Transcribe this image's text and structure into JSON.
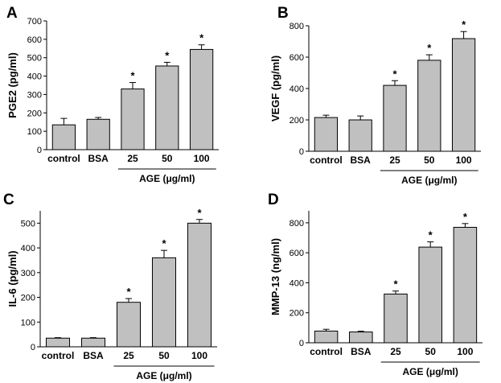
{
  "colors": {
    "bar_fill": "#c0c0c0",
    "bar_stroke": "#000000"
  },
  "chart_data": [
    {
      "panel": "A",
      "type": "bar",
      "ylabel": "PGE2 (pg/ml)",
      "categories": [
        "control",
        "BSA",
        "25",
        "50",
        "100"
      ],
      "values": [
        135,
        165,
        330,
        455,
        545
      ],
      "errors": [
        35,
        10,
        35,
        20,
        25
      ],
      "significant": [
        "",
        "",
        "*",
        "*",
        "*"
      ],
      "ylim": [
        0,
        700
      ],
      "yticks": [
        "0",
        "100",
        "200",
        "300",
        "400",
        "500",
        "600",
        "700"
      ],
      "group_label": "AGE (μg/ml)",
      "grid": false
    },
    {
      "panel": "B",
      "type": "bar",
      "ylabel": "VEGF (pg/ml)",
      "categories": [
        "control",
        "BSA",
        "25",
        "50",
        "100"
      ],
      "values": [
        215,
        200,
        420,
        580,
        718
      ],
      "errors": [
        15,
        25,
        30,
        35,
        45
      ],
      "significant": [
        "",
        "",
        "*",
        "*",
        "*"
      ],
      "ylim": [
        0,
        800
      ],
      "yticks": [
        "0",
        "200",
        "400",
        "600",
        "800"
      ],
      "group_label": "AGE (μg/ml)",
      "grid": false
    },
    {
      "panel": "C",
      "type": "bar",
      "ylabel": "IL-6 (pg/ml)",
      "categories": [
        "control",
        "BSA",
        "25",
        "50",
        "100"
      ],
      "values": [
        35,
        35,
        180,
        360,
        500
      ],
      "errors": [
        2,
        2,
        15,
        30,
        15
      ],
      "significant": [
        "",
        "",
        "*",
        "*",
        "*"
      ],
      "ylim": [
        0,
        550
      ],
      "yticks": [
        "0",
        "100",
        "200",
        "300",
        "400",
        "500"
      ],
      "group_label": "AGE (μg/ml)",
      "grid": false
    },
    {
      "panel": "D",
      "type": "bar",
      "ylabel": "MMP-13 (ng/ml)",
      "categories": [
        "control",
        "BSA",
        "25",
        "50",
        "100"
      ],
      "values": [
        78,
        72,
        325,
        638,
        770
      ],
      "errors": [
        12,
        5,
        20,
        35,
        25
      ],
      "significant": [
        "",
        "",
        "*",
        "*",
        "*"
      ],
      "ylim": [
        0,
        880
      ],
      "yticks": [
        "0",
        "200",
        "400",
        "600",
        "800"
      ],
      "group_label": "AGE (μg/ml)",
      "grid": false
    }
  ]
}
